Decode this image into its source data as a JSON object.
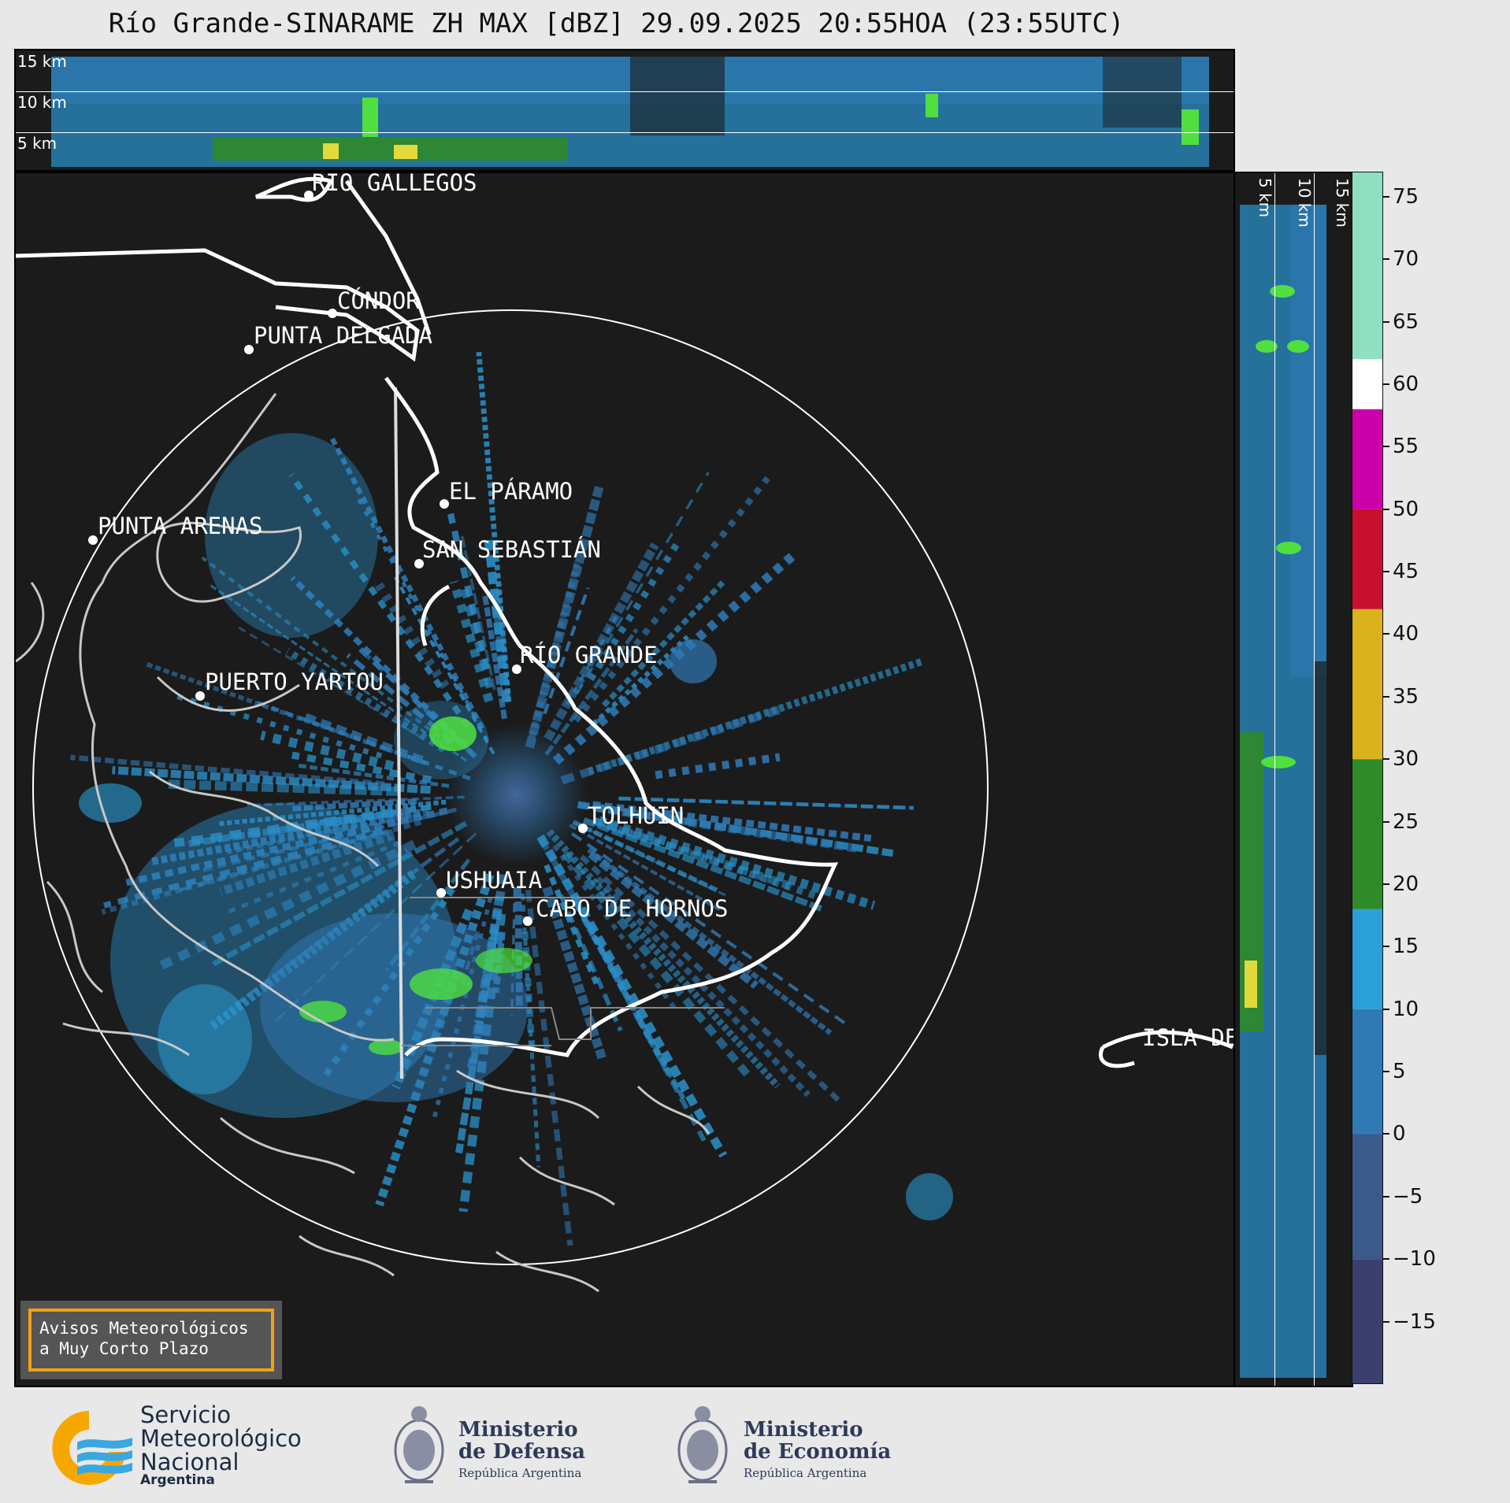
{
  "title": "Río Grande-SINARAME ZH MAX [dBZ] 29.09.2025 20:55HOA (23:55UTC)",
  "top_profile": {
    "height_labels": [
      "15 km",
      "10 km",
      "5 km"
    ]
  },
  "side_profile": {
    "height_labels": [
      "5 km",
      "10 km",
      "15 km"
    ]
  },
  "cities": [
    {
      "name": "RÍO GALLEGOS"
    },
    {
      "name": "CÓNDOR"
    },
    {
      "name": "PUNTA DELGADA"
    },
    {
      "name": "EL PÁRAMO"
    },
    {
      "name": "SAN SEBASTIÁN"
    },
    {
      "name": "PUNTA ARENAS"
    },
    {
      "name": "RÍO GRANDE"
    },
    {
      "name": "PUERTO YARTOU"
    },
    {
      "name": "TOLHUIN"
    },
    {
      "name": "USHUAIA"
    },
    {
      "name": "CABO DE HORNOS"
    },
    {
      "name": "ISLA DE"
    }
  ],
  "colorbar": {
    "unit": "dBZ",
    "range": [
      -20,
      77
    ],
    "ticks": [
      75,
      70,
      65,
      60,
      55,
      50,
      45,
      40,
      35,
      30,
      25,
      20,
      15,
      10,
      5,
      0,
      -5,
      -10,
      -15
    ],
    "tick_labels": [
      "75",
      "70",
      "65",
      "60",
      "55",
      "50",
      "45",
      "40",
      "35",
      "30",
      "25",
      "20",
      "15",
      "10",
      "5",
      "0",
      "−5",
      "−10",
      "−15"
    ],
    "stops": [
      {
        "from": -20,
        "to": -10,
        "color": "#3b3f6e"
      },
      {
        "from": -10,
        "to": 0,
        "color": "#3a5a8c"
      },
      {
        "from": 0,
        "to": 10,
        "color": "#2f79b5"
      },
      {
        "from": 10,
        "to": 18,
        "color": "#2a9fd8"
      },
      {
        "from": 18,
        "to": 30,
        "color": "#2f8a2a"
      },
      {
        "from": 30,
        "to": 42,
        "color": "#d9b21e"
      },
      {
        "from": 42,
        "to": 50,
        "color": "#c8102e"
      },
      {
        "from": 50,
        "to": 58,
        "color": "#cc00aa"
      },
      {
        "from": 58,
        "to": 62,
        "color": "#ffffff"
      },
      {
        "from": 62,
        "to": 77,
        "color": "#8fe0c0"
      }
    ]
  },
  "warning": {
    "line1": "Avisos Meteorológicos",
    "line2": "a Muy Corto Plazo",
    "border_color": "#f2a115"
  },
  "logos": {
    "smn": {
      "line1": "Servicio",
      "line2": "Meteorológico",
      "line3": "Nacional",
      "sub": "Argentina"
    },
    "defensa": {
      "line1": "Ministerio",
      "line2": "de Defensa",
      "sub": "República Argentina"
    },
    "economia": {
      "line1": "Ministerio",
      "line2": "de Economía",
      "sub": "República Argentina"
    }
  }
}
